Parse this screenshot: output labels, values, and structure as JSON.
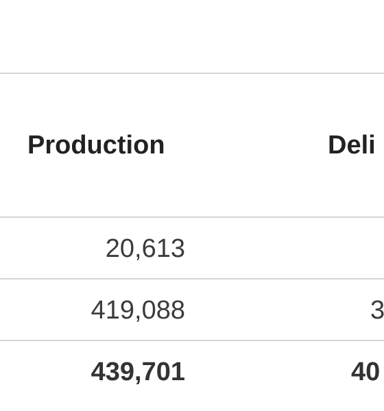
{
  "table": {
    "headers": {
      "production": "Production",
      "deliveries_partial": "Deli"
    },
    "rows": [
      {
        "production": "20,613",
        "deliveries_partial": ""
      },
      {
        "production": "419,088",
        "deliveries_partial": "3"
      },
      {
        "production": "439,701",
        "deliveries_partial": "40"
      }
    ]
  }
}
